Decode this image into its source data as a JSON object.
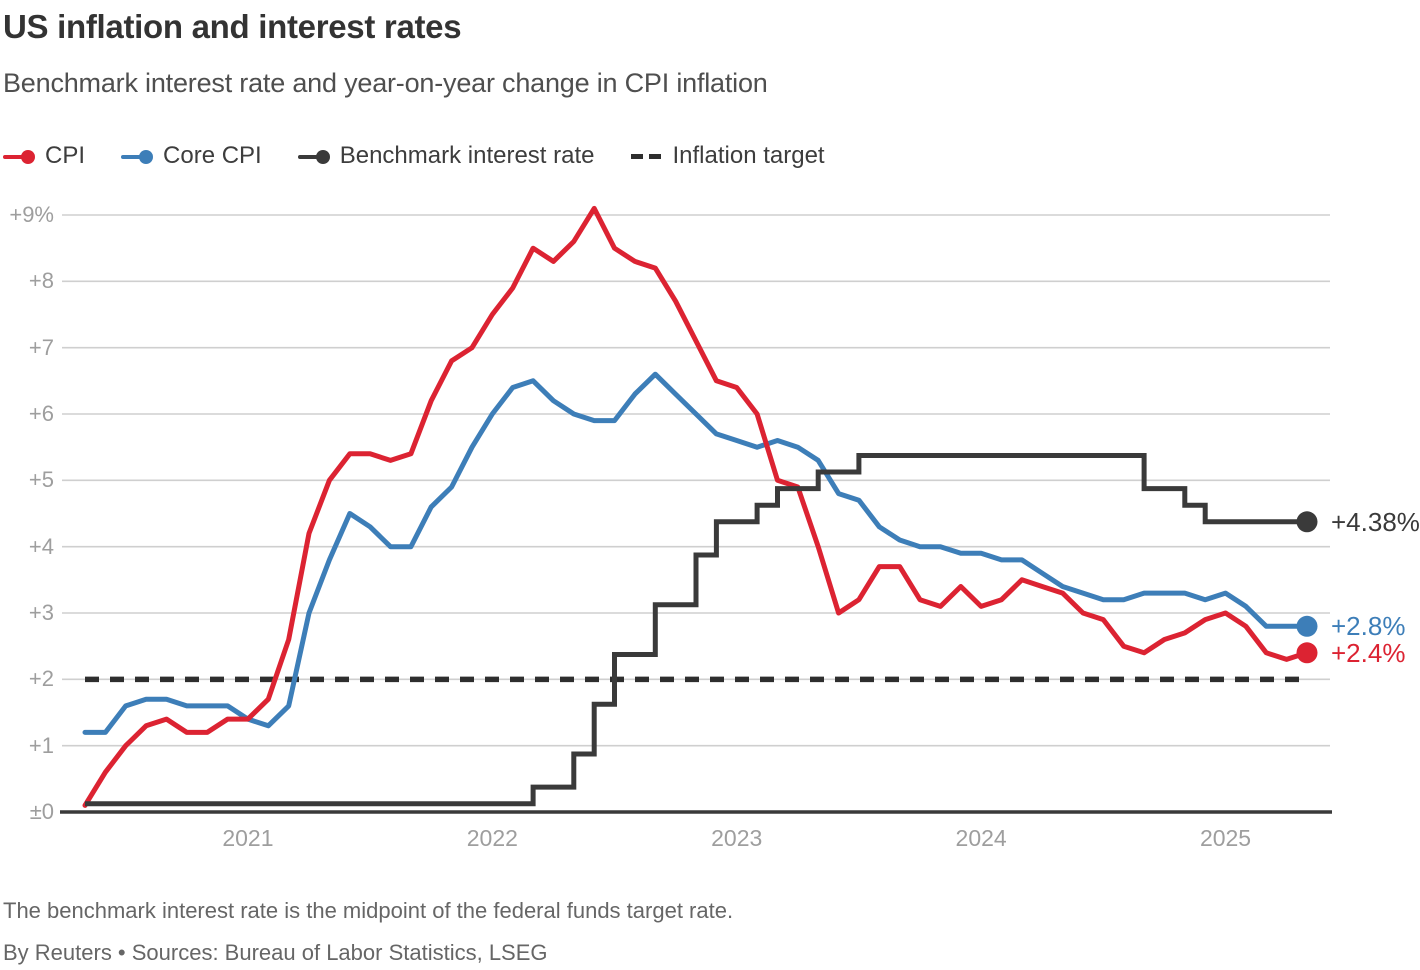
{
  "header": {
    "title": "US inflation and interest rates",
    "subtitle": "Benchmark interest rate and year-on-year change in CPI inflation"
  },
  "legend": [
    {
      "label": "CPI",
      "color": "#dc2332",
      "marker": "line-dot"
    },
    {
      "label": "Core CPI",
      "color": "#3d7eb8",
      "marker": "line-dot"
    },
    {
      "label": "Benchmark interest rate",
      "color": "#3a3a3a",
      "marker": "line-dot"
    },
    {
      "label": "Inflation target",
      "color": "#2e2e2e",
      "marker": "dashes"
    }
  ],
  "colors": {
    "cpi": "#dc2332",
    "core_cpi": "#3d7eb8",
    "benchmark": "#3a3a3a",
    "target_dash": "#2e2e2e",
    "gridline": "#cfcfcf",
    "axis": "#3a3a3a",
    "tick_text": "#9e9e9e",
    "end_label_dark": "#3a3a3a"
  },
  "chart_data": {
    "type": "line",
    "x_unit": "month",
    "x_start": "2020-05",
    "x_end": "2025-05",
    "ylim": [
      0,
      9
    ],
    "grid": true,
    "legend_position": "top",
    "yticks": [
      {
        "label": "+9%",
        "value": 9
      },
      {
        "label": "+8",
        "value": 8
      },
      {
        "label": "+7",
        "value": 7
      },
      {
        "label": "+6",
        "value": 6
      },
      {
        "label": "+5",
        "value": 5
      },
      {
        "label": "+4",
        "value": 4
      },
      {
        "label": "+3",
        "value": 3
      },
      {
        "label": "+2",
        "value": 2
      },
      {
        "label": "+1",
        "value": 1
      },
      {
        "label": "±0",
        "value": 0
      }
    ],
    "xticks": [
      {
        "label": "2021",
        "month_index": 8
      },
      {
        "label": "2022",
        "month_index": 20
      },
      {
        "label": "2023",
        "month_index": 32
      },
      {
        "label": "2024",
        "month_index": 44
      },
      {
        "label": "2025",
        "month_index": 56
      }
    ],
    "series": [
      {
        "name": "Core CPI",
        "style": "line",
        "color": "#3d7eb8",
        "end_label": "+2.8%",
        "values": [
          1.2,
          1.2,
          1.6,
          1.7,
          1.7,
          1.6,
          1.6,
          1.6,
          1.4,
          1.3,
          1.6,
          3.0,
          3.8,
          4.5,
          4.3,
          4.0,
          4.0,
          4.6,
          4.9,
          5.5,
          6.0,
          6.4,
          6.5,
          6.2,
          6.0,
          5.9,
          5.9,
          6.3,
          6.6,
          6.3,
          6.0,
          5.7,
          5.6,
          5.5,
          5.6,
          5.5,
          5.3,
          4.8,
          4.7,
          4.3,
          4.1,
          4.0,
          4.0,
          3.9,
          3.9,
          3.8,
          3.8,
          3.6,
          3.4,
          3.3,
          3.2,
          3.2,
          3.3,
          3.3,
          3.3,
          3.2,
          3.3,
          3.1,
          2.8,
          2.8,
          2.8
        ]
      },
      {
        "name": "CPI",
        "style": "line",
        "color": "#dc2332",
        "end_label": "+2.4%",
        "values": [
          0.1,
          0.6,
          1.0,
          1.3,
          1.4,
          1.2,
          1.2,
          1.4,
          1.4,
          1.7,
          2.6,
          4.2,
          5.0,
          5.4,
          5.4,
          5.3,
          5.4,
          6.2,
          6.8,
          7.0,
          7.5,
          7.9,
          8.5,
          8.3,
          8.6,
          9.1,
          8.5,
          8.3,
          8.2,
          7.7,
          7.1,
          6.5,
          6.4,
          6.0,
          5.0,
          4.9,
          4.0,
          3.0,
          3.2,
          3.7,
          3.7,
          3.2,
          3.1,
          3.4,
          3.1,
          3.2,
          3.5,
          3.4,
          3.3,
          3.0,
          2.9,
          2.5,
          2.4,
          2.6,
          2.7,
          2.9,
          3.0,
          2.8,
          2.4,
          2.3,
          2.4
        ]
      },
      {
        "name": "Benchmark interest rate",
        "style": "step",
        "color": "#3a3a3a",
        "end_label": "+4.38%",
        "values": [
          0.125,
          0.125,
          0.125,
          0.125,
          0.125,
          0.125,
          0.125,
          0.125,
          0.125,
          0.125,
          0.125,
          0.125,
          0.125,
          0.125,
          0.125,
          0.125,
          0.125,
          0.125,
          0.125,
          0.125,
          0.125,
          0.125,
          0.375,
          0.375,
          0.875,
          1.625,
          2.375,
          2.375,
          3.125,
          3.125,
          3.875,
          4.375,
          4.375,
          4.625,
          4.875,
          4.875,
          5.125,
          5.125,
          5.375,
          5.375,
          5.375,
          5.375,
          5.375,
          5.375,
          5.375,
          5.375,
          5.375,
          5.375,
          5.375,
          5.375,
          5.375,
          5.375,
          4.875,
          4.875,
          4.625,
          4.375,
          4.375,
          4.375,
          4.375,
          4.375,
          4.375
        ]
      },
      {
        "name": "Inflation target",
        "style": "dashed-horizontal",
        "color": "#2e2e2e",
        "value": 2
      }
    ]
  },
  "footer": {
    "note": "The benchmark interest rate is the midpoint of the federal funds target rate.",
    "credit": "By Reuters • Sources: Bureau of Labor Statistics, LSEG"
  }
}
